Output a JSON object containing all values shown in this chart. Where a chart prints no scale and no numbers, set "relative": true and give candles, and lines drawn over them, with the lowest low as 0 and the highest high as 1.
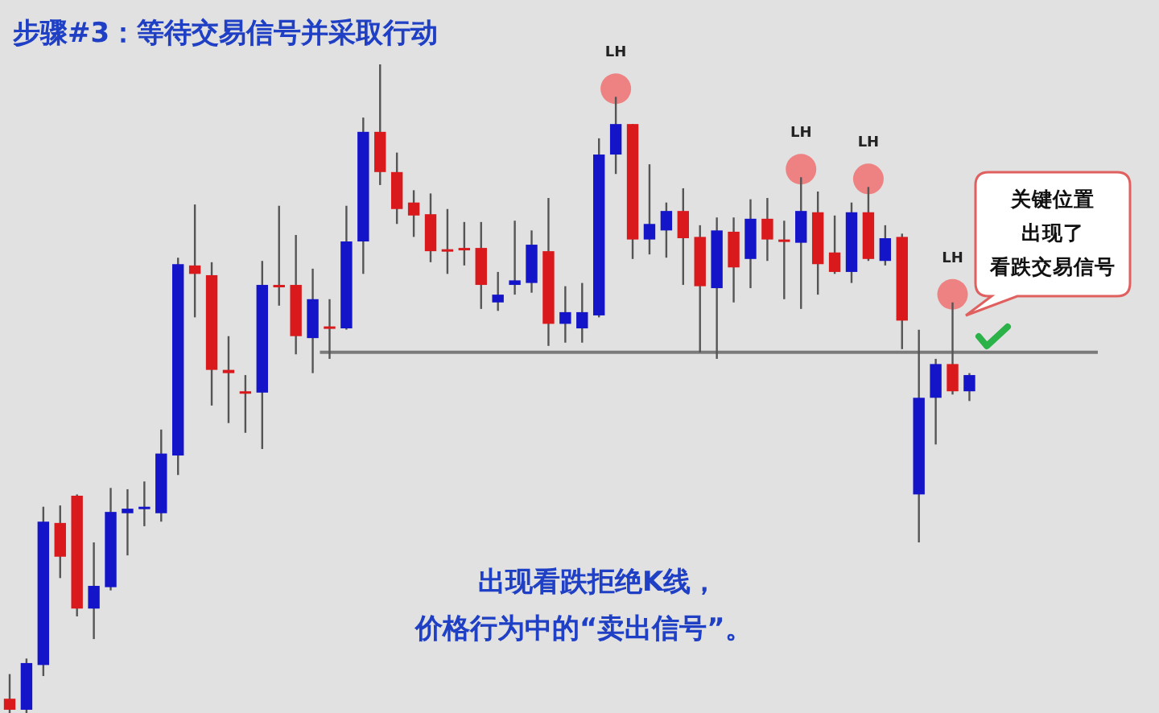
{
  "chart_data": {
    "type": "candlestick",
    "title": "步骤#3：等待交易信号并采取行动",
    "relative": true,
    "categories": [
      null,
      null,
      null,
      null,
      null,
      null,
      null,
      null,
      null,
      null,
      null,
      null,
      null,
      null,
      null,
      null,
      null,
      null,
      null,
      null,
      null,
      null,
      null,
      null,
      null,
      null,
      null,
      null,
      null,
      null,
      null,
      null,
      null,
      null,
      null,
      null,
      null,
      null,
      null,
      null,
      null,
      null,
      null,
      null,
      null,
      null,
      null,
      null,
      null,
      null,
      null,
      null,
      null,
      null,
      null,
      null,
      null,
      null
    ],
    "ohlc": [
      [
        0.022,
        0.06,
        0,
        0.005
      ],
      [
        0.005,
        0.084,
        0,
        0.077
      ],
      [
        0.074,
        0.318,
        0.057,
        0.295
      ],
      [
        0.293,
        0.32,
        0.208,
        0.241
      ],
      [
        0.335,
        0.337,
        0.149,
        0.161
      ],
      [
        0.161,
        0.263,
        0.114,
        0.196
      ],
      [
        0.194,
        0.347,
        0.189,
        0.31
      ],
      [
        0.308,
        0.345,
        0.243,
        0.315
      ],
      [
        0.315,
        0.357,
        0.288,
        0.318
      ],
      [
        0.308,
        0.437,
        0.295,
        0.4
      ],
      [
        0.397,
        0.702,
        0.367,
        0.692
      ],
      [
        0.69,
        0.784,
        0.61,
        0.677
      ],
      [
        0.675,
        0.695,
        0.474,
        0.529
      ],
      [
        0.529,
        0.581,
        0.447,
        0.524
      ],
      [
        0.496,
        0.521,
        0.432,
        0.494
      ],
      [
        0.494,
        0.697,
        0.407,
        0.66
      ],
      [
        0.66,
        0.782,
        0.628,
        0.658
      ],
      [
        0.66,
        0.737,
        0.553,
        0.581
      ],
      [
        0.578,
        0.685,
        0.524,
        0.638
      ],
      [
        0.596,
        0.638,
        0.546,
        0.593
      ],
      [
        0.593,
        0.782,
        0.591,
        0.727
      ],
      [
        0.727,
        0.918,
        0.677,
        0.896
      ],
      [
        0.896,
        1,
        0.814,
        0.834
      ],
      [
        0.834,
        0.864,
        0.754,
        0.777
      ],
      [
        0.787,
        0.806,
        0.734,
        0.767
      ],
      [
        0.769,
        0.801,
        0.695,
        0.712
      ],
      [
        0.715,
        0.777,
        0.677,
        0.712
      ],
      [
        0.717,
        0.757,
        0.69,
        0.715
      ],
      [
        0.717,
        0.757,
        0.623,
        0.66
      ],
      [
        0.633,
        0.68,
        0.62,
        0.645
      ],
      [
        0.66,
        0.759,
        0.645,
        0.667
      ],
      [
        0.663,
        0.744,
        0.648,
        0.722
      ],
      [
        0.712,
        0.794,
        0.566,
        0.6
      ],
      [
        0.6,
        0.658,
        0.571,
        0.618
      ],
      [
        0.593,
        0.663,
        0.571,
        0.618
      ],
      [
        0.613,
        0.886,
        0.61,
        0.861
      ],
      [
        0.861,
        0.95,
        0.831,
        0.908
      ],
      [
        0.908,
        0.908,
        0.7,
        0.73
      ],
      [
        0.73,
        0.846,
        0.707,
        0.754
      ],
      [
        0.744,
        0.787,
        0.702,
        0.774
      ],
      [
        0.774,
        0.809,
        0.66,
        0.732
      ],
      [
        0.734,
        0.752,
        0.556,
        0.658
      ],
      [
        0.655,
        0.764,
        0.546,
        0.744
      ],
      [
        0.742,
        0.764,
        0.633,
        0.687
      ],
      [
        0.7,
        0.792,
        0.655,
        0.762
      ],
      [
        0.762,
        0.794,
        0.697,
        0.73
      ],
      [
        0.73,
        0.759,
        0.638,
        0.727
      ],
      [
        0.725,
        0.826,
        0.623,
        0.774
      ],
      [
        0.772,
        0.804,
        0.645,
        0.692
      ],
      [
        0.71,
        0.767,
        0.677,
        0.68
      ],
      [
        0.68,
        0.787,
        0.663,
        0.772
      ],
      [
        0.772,
        0.811,
        0.697,
        0.7
      ],
      [
        0.697,
        0.752,
        0.69,
        0.732
      ],
      [
        0.734,
        0.739,
        0.561,
        0.605
      ],
      [
        0.337,
        0.591,
        0.263,
        0.486
      ],
      [
        0.486,
        0.546,
        0.414,
        0.538
      ],
      [
        0.538,
        0.633,
        0.491,
        0.496
      ],
      [
        0.496,
        0.524,
        0.481,
        0.521
      ]
    ],
    "colors": [
      "#d9191c",
      "#1414c8",
      "#1414c8",
      "#d9191c",
      "#d9191c",
      "#1414c8",
      "#1414c8",
      "#1414c8",
      "#1414c8",
      "#1414c8",
      "#1414c8",
      "#d9191c",
      "#d9191c",
      "#d9191c",
      "#d9191c",
      "#1414c8",
      "#d9191c",
      "#d9191c",
      "#1414c8",
      "#d9191c",
      "#1414c8",
      "#1414c8",
      "#d9191c",
      "#d9191c",
      "#d9191c",
      "#d9191c",
      "#d9191c",
      "#d9191c",
      "#d9191c",
      "#1414c8",
      "#1414c8",
      "#1414c8",
      "#d9191c",
      "#1414c8",
      "#1414c8",
      "#1414c8",
      "#1414c8",
      "#d9191c",
      "#1414c8",
      "#1414c8",
      "#d9191c",
      "#d9191c",
      "#1414c8",
      "#d9191c",
      "#1414c8",
      "#d9191c",
      "#d9191c",
      "#1414c8",
      "#d9191c",
      "#d9191c",
      "#1414c8",
      "#d9191c",
      "#1414c8",
      "#d9191c",
      "#1414c8",
      "#1414c8",
      "#d9191c",
      "#1414c8"
    ],
    "ref_lines": [
      {
        "axis": "y",
        "value": 0.556,
        "color": "#7a7a7a"
      }
    ],
    "annotations": [
      {
        "text": "LH",
        "y": 0.95
      },
      {
        "text": "LH",
        "y": 0.826
      },
      {
        "text": "LH",
        "y": 0.811
      },
      {
        "text": "LH",
        "y": 0.633
      },
      "出现看跌拒绝K线，",
      "价格行为中的“卖出信号”。",
      "关键位置",
      "出现了",
      "看跌交易信号"
    ]
  }
}
